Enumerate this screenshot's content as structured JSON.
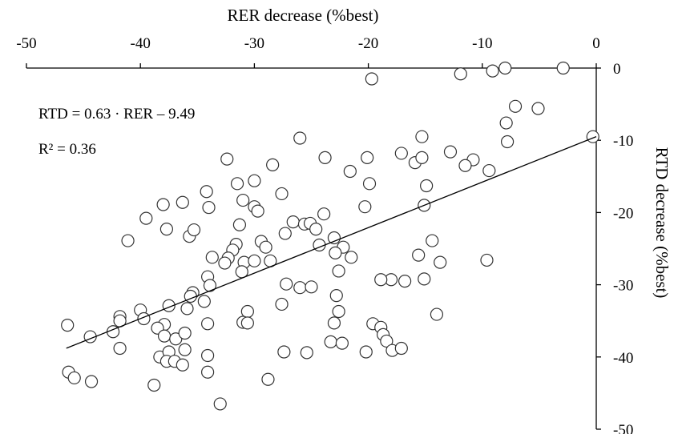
{
  "chart_data": {
    "type": "scatter",
    "xlabel": "RER decrease (%best)",
    "ylabel": "RTD decrease (%best)",
    "xlim": [
      -50,
      0
    ],
    "ylim": [
      -50,
      0
    ],
    "x_ticks": [
      -50,
      -40,
      -30,
      -20,
      -10,
      0
    ],
    "y_ticks": [
      0,
      -10,
      -20,
      -30,
      -40,
      -50
    ],
    "x_tick_labels": [
      "-50",
      "-40",
      "-30",
      "-20",
      "-10",
      "0"
    ],
    "y_tick_labels": [
      "0",
      "-10",
      "-20",
      "-30",
      "-40",
      "-50"
    ],
    "x_axis_position": "top",
    "y_axis_position": "right",
    "grid": false,
    "legend": "none",
    "marker": "open-circle",
    "annotations": [
      "RTD = 0.63 · RER – 9.49",
      "R² = 0.36"
    ],
    "trendline": {
      "slope": 0.63,
      "intercept": -9.49,
      "x_range": [
        -46.5,
        0
      ]
    },
    "points": [
      [
        -19.7,
        -1.5
      ],
      [
        -11.9,
        -0.8
      ],
      [
        -9.1,
        -0.4
      ],
      [
        -8.0,
        0.0
      ],
      [
        -2.9,
        0.0
      ],
      [
        -7.1,
        -5.3
      ],
      [
        -5.1,
        -5.6
      ],
      [
        -7.9,
        -7.6
      ],
      [
        -7.8,
        -10.2
      ],
      [
        -0.3,
        -9.5
      ],
      [
        -15.3,
        -9.5
      ],
      [
        -12.8,
        -11.6
      ],
      [
        -10.8,
        -12.7
      ],
      [
        -11.5,
        -13.5
      ],
      [
        -9.4,
        -14.2
      ],
      [
        -15.9,
        -13.1
      ],
      [
        -15.3,
        -12.4
      ],
      [
        -17.1,
        -11.8
      ],
      [
        -20.1,
        -12.4
      ],
      [
        -21.6,
        -14.3
      ],
      [
        -23.8,
        -12.4
      ],
      [
        -26.0,
        -9.7
      ],
      [
        -28.4,
        -13.4
      ],
      [
        -32.4,
        -12.6
      ],
      [
        -19.9,
        -16.0
      ],
      [
        -14.9,
        -16.3
      ],
      [
        -30.0,
        -15.6
      ],
      [
        -31.5,
        -16.0
      ],
      [
        -34.2,
        -17.1
      ],
      [
        -36.3,
        -18.6
      ],
      [
        -38.0,
        -18.9
      ],
      [
        -39.5,
        -20.8
      ],
      [
        -41.1,
        -23.9
      ],
      [
        -37.7,
        -22.3
      ],
      [
        -35.7,
        -23.3
      ],
      [
        -35.3,
        -22.4
      ],
      [
        -34.0,
        -19.3
      ],
      [
        -31.0,
        -18.3
      ],
      [
        -30.0,
        -19.2
      ],
      [
        -29.7,
        -19.8
      ],
      [
        -31.3,
        -21.7
      ],
      [
        -29.4,
        -24.0
      ],
      [
        -27.6,
        -17.4
      ],
      [
        -27.3,
        -22.9
      ],
      [
        -26.6,
        -21.3
      ],
      [
        -25.6,
        -21.6
      ],
      [
        -25.1,
        -21.5
      ],
      [
        -24.6,
        -22.3
      ],
      [
        -23.9,
        -20.2
      ],
      [
        -24.3,
        -24.5
      ],
      [
        -23.0,
        -23.5
      ],
      [
        -22.2,
        -24.8
      ],
      [
        -20.3,
        -19.2
      ],
      [
        -15.1,
        -19.0
      ],
      [
        -14.4,
        -23.9
      ],
      [
        -31.6,
        -24.4
      ],
      [
        -31.9,
        -25.2
      ],
      [
        -32.3,
        -26.3
      ],
      [
        -30.9,
        -26.9
      ],
      [
        -31.1,
        -28.2
      ],
      [
        -30.0,
        -26.7
      ],
      [
        -28.6,
        -26.7
      ],
      [
        -29.0,
        -24.8
      ],
      [
        -32.6,
        -27.0
      ],
      [
        -33.7,
        -26.2
      ],
      [
        -34.1,
        -28.9
      ],
      [
        -33.9,
        -30.1
      ],
      [
        -22.9,
        -25.6
      ],
      [
        -21.5,
        -26.2
      ],
      [
        -22.6,
        -28.1
      ],
      [
        -15.6,
        -25.9
      ],
      [
        -13.7,
        -26.9
      ],
      [
        -9.6,
        -26.6
      ],
      [
        -15.1,
        -29.2
      ],
      [
        -16.8,
        -29.5
      ],
      [
        -18.0,
        -29.3
      ],
      [
        -18.9,
        -29.3
      ],
      [
        -26.0,
        -30.4
      ],
      [
        -27.2,
        -29.9
      ],
      [
        -25.0,
        -30.3
      ],
      [
        -27.6,
        -32.7
      ],
      [
        -22.8,
        -31.5
      ],
      [
        -22.6,
        -33.7
      ],
      [
        -23.0,
        -35.3
      ],
      [
        -14.0,
        -34.1
      ],
      [
        -35.4,
        -31.1
      ],
      [
        -35.6,
        -31.6
      ],
      [
        -37.5,
        -32.9
      ],
      [
        -35.9,
        -33.3
      ],
      [
        -34.4,
        -32.3
      ],
      [
        -30.6,
        -33.7
      ],
      [
        -31.0,
        -35.2
      ],
      [
        -30.6,
        -35.3
      ],
      [
        -34.1,
        -35.4
      ],
      [
        -37.9,
        -35.5
      ],
      [
        -38.5,
        -36.0
      ],
      [
        -37.9,
        -37.1
      ],
      [
        -36.9,
        -37.5
      ],
      [
        -36.1,
        -36.7
      ],
      [
        -40.0,
        -33.5
      ],
      [
        -41.8,
        -34.4
      ],
      [
        -41.8,
        -35.0
      ],
      [
        -39.7,
        -34.7
      ],
      [
        -42.4,
        -36.5
      ],
      [
        -44.4,
        -37.2
      ],
      [
        -46.4,
        -35.6
      ],
      [
        -41.8,
        -38.8
      ],
      [
        -38.3,
        -40.0
      ],
      [
        -37.5,
        -39.3
      ],
      [
        -37.7,
        -40.6
      ],
      [
        -37.0,
        -40.6
      ],
      [
        -36.3,
        -41.1
      ],
      [
        -36.1,
        -39.0
      ],
      [
        -34.1,
        -39.8
      ],
      [
        -34.1,
        -42.1
      ],
      [
        -38.8,
        -43.9
      ],
      [
        -46.3,
        -42.1
      ],
      [
        -45.8,
        -42.9
      ],
      [
        -44.3,
        -43.4
      ],
      [
        -33.0,
        -46.5
      ],
      [
        -28.8,
        -43.1
      ],
      [
        -27.4,
        -39.3
      ],
      [
        -25.4,
        -39.4
      ],
      [
        -23.3,
        -37.9
      ],
      [
        -22.3,
        -38.1
      ],
      [
        -20.2,
        -39.3
      ],
      [
        -19.6,
        -35.4
      ],
      [
        -18.9,
        -35.9
      ],
      [
        -18.7,
        -36.9
      ],
      [
        -18.4,
        -37.8
      ],
      [
        -17.9,
        -39.1
      ],
      [
        -17.1,
        -38.8
      ]
    ]
  }
}
